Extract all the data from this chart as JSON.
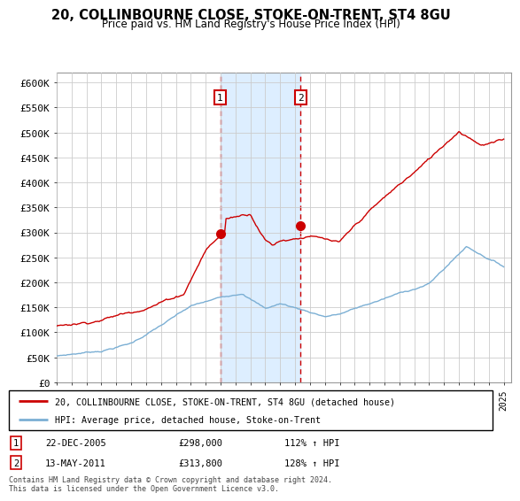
{
  "title": "20, COLLINBOURNE CLOSE, STOKE-ON-TRENT, ST4 8GU",
  "subtitle": "Price paid vs. HM Land Registry's House Price Index (HPI)",
  "ylim": [
    0,
    620000
  ],
  "xlim_start": 1995.0,
  "xlim_end": 2025.5,
  "transaction1": {
    "date": "22-DEC-2005",
    "price": 298000,
    "hpi_pct": "112%",
    "x": 2005.97
  },
  "transaction2": {
    "date": "13-MAY-2011",
    "price": 313800,
    "hpi_pct": "128%",
    "x": 2011.37
  },
  "legend_house": "20, COLLINBOURNE CLOSE, STOKE-ON-TRENT, ST4 8GU (detached house)",
  "legend_hpi": "HPI: Average price, detached house, Stoke-on-Trent",
  "footer": "Contains HM Land Registry data © Crown copyright and database right 2024.\nThis data is licensed under the Open Government Licence v3.0.",
  "house_color": "#cc0000",
  "hpi_color": "#7bafd4",
  "shade_color": "#ddeeff",
  "grid_color": "#cccccc"
}
